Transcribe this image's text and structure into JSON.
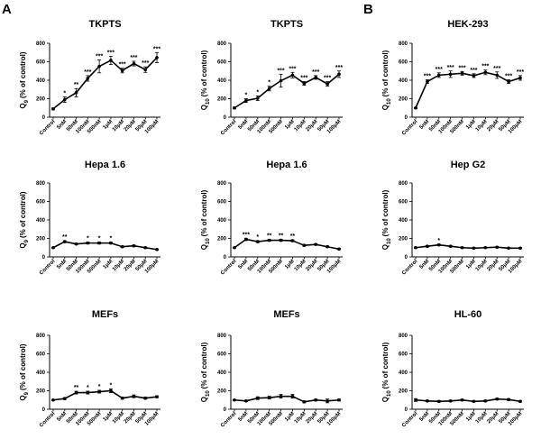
{
  "panel_labels": [
    "A",
    "B"
  ],
  "chart_data": [
    {
      "type": "line",
      "title": "TKPTS",
      "ylabel": "Q",
      "ylabel_sub": "9",
      "ylabel_rest": "(% of control)",
      "categories": [
        "Control",
        "5nM",
        "50nM",
        "100nM",
        "500nM",
        "1μM",
        "10μM",
        "20μM",
        "50μM",
        "100μM"
      ],
      "values": [
        90,
        190,
        265,
        420,
        550,
        615,
        505,
        580,
        515,
        645
      ],
      "errors": [
        10,
        30,
        45,
        30,
        70,
        45,
        25,
        25,
        30,
        55
      ],
      "significance": [
        "",
        "*",
        "**",
        "***",
        "***",
        "***",
        "***",
        "***",
        "***",
        "***"
      ],
      "ylim": [
        0,
        800
      ],
      "yticks": [
        0,
        200,
        400,
        600,
        800
      ]
    },
    {
      "type": "line",
      "title": "TKPTS",
      "ylabel": "Q",
      "ylabel_sub": "10",
      "ylabel_rest": "(% of control)",
      "categories": [
        "Control",
        "5nM",
        "50nM",
        "100nM",
        "500nM",
        "1μM",
        "10μM",
        "20μM",
        "50μM",
        "100μM"
      ],
      "values": [
        100,
        180,
        205,
        310,
        395,
        455,
        365,
        430,
        360,
        465
      ],
      "errors": [
        10,
        20,
        25,
        25,
        70,
        30,
        20,
        20,
        25,
        35
      ],
      "significance": [
        "",
        "*",
        "*",
        "*",
        "***",
        "***",
        "***",
        "***",
        "***",
        "***"
      ],
      "ylim": [
        0,
        800
      ],
      "yticks": [
        0,
        200,
        400,
        600,
        800
      ]
    },
    {
      "type": "line",
      "title": "HEK-293",
      "ylabel": "Q",
      "ylabel_sub": "10",
      "ylabel_rest": "(% of control)",
      "categories": [
        "Control",
        "5nM",
        "50nM",
        "100nM",
        "500nM",
        "1μM",
        "10μM",
        "20μM",
        "50μM",
        "100μM"
      ],
      "values": [
        100,
        385,
        455,
        465,
        475,
        450,
        485,
        455,
        385,
        425
      ],
      "errors": [
        5,
        20,
        25,
        35,
        20,
        20,
        25,
        35,
        20,
        25
      ],
      "significance": [
        "",
        "***",
        "***",
        "***",
        "***",
        "***",
        "***",
        "***",
        "***",
        "***"
      ],
      "ylim": [
        0,
        800
      ],
      "yticks": [
        0,
        200,
        400,
        600,
        800
      ]
    },
    {
      "type": "line",
      "title": "Hepa 1.6",
      "ylabel": "Q",
      "ylabel_sub": "9",
      "ylabel_rest": "(% of control)",
      "categories": [
        "Control",
        "5nM",
        "50nM",
        "100nM",
        "500nM",
        "1μM",
        "10μM",
        "20μM",
        "50μM",
        "100μM"
      ],
      "values": [
        100,
        165,
        140,
        150,
        150,
        150,
        110,
        120,
        100,
        80
      ],
      "errors": [
        5,
        10,
        8,
        10,
        10,
        10,
        8,
        8,
        8,
        6
      ],
      "significance": [
        "",
        "**",
        "",
        "*",
        "*",
        "*",
        "",
        "",
        "",
        ""
      ],
      "ylim": [
        0,
        800
      ],
      "yticks": [
        0,
        200,
        400,
        600,
        800
      ]
    },
    {
      "type": "line",
      "title": "Hepa 1.6",
      "ylabel": "Q",
      "ylabel_sub": "10",
      "ylabel_rest": "(% of control)",
      "categories": [
        "Control",
        "5nM",
        "50nM",
        "100nM",
        "500nM",
        "1μM",
        "10μM",
        "20μM",
        "50μM",
        "100μM"
      ],
      "values": [
        100,
        190,
        165,
        180,
        180,
        175,
        125,
        135,
        110,
        85
      ],
      "errors": [
        5,
        12,
        10,
        10,
        10,
        10,
        8,
        8,
        8,
        6
      ],
      "significance": [
        "",
        "***",
        "*",
        "**",
        "**",
        "**",
        "",
        "",
        "",
        ""
      ],
      "ylim": [
        0,
        800
      ],
      "yticks": [
        0,
        200,
        400,
        600,
        800
      ]
    },
    {
      "type": "line",
      "title": "Hep G2",
      "ylabel": "Q",
      "ylabel_sub": "10",
      "ylabel_rest": "(% of control)",
      "categories": [
        "Control",
        "5nM",
        "50nM",
        "100nM",
        "500nM",
        "1μM",
        "10μM",
        "20μM",
        "50μM",
        "100μM"
      ],
      "values": [
        100,
        115,
        130,
        115,
        100,
        95,
        100,
        105,
        95,
        95
      ],
      "errors": [
        5,
        8,
        8,
        8,
        6,
        6,
        6,
        6,
        6,
        6
      ],
      "significance": [
        "",
        "",
        "*",
        "",
        "",
        "",
        "",
        "",
        "",
        ""
      ],
      "ylim": [
        0,
        800
      ],
      "yticks": [
        0,
        200,
        400,
        600,
        800
      ]
    },
    {
      "type": "line",
      "title": "MEFs",
      "ylabel": "Q",
      "ylabel_sub": "9",
      "ylabel_rest": "(% of control)",
      "categories": [
        "Control",
        "5nM",
        "50nM",
        "100nM",
        "500nM",
        "1μM",
        "10μM",
        "20μM",
        "50μM",
        "100μM"
      ],
      "values": [
        100,
        115,
        180,
        180,
        190,
        200,
        120,
        140,
        120,
        135
      ],
      "errors": [
        5,
        10,
        15,
        15,
        15,
        20,
        10,
        15,
        10,
        10
      ],
      "significance": [
        "",
        "",
        "**",
        "*",
        "*",
        "*",
        "",
        "",
        "",
        ""
      ],
      "ylim": [
        0,
        800
      ],
      "yticks": [
        0,
        200,
        400,
        600,
        800
      ]
    },
    {
      "type": "line",
      "title": "MEFs",
      "ylabel": "Q",
      "ylabel_sub": "10",
      "ylabel_rest": "(% of control)",
      "categories": [
        "Control",
        "5nM",
        "50nM",
        "100nM",
        "500nM",
        "1μM",
        "10μM",
        "20μM",
        "50μM",
        "100μM"
      ],
      "values": [
        100,
        90,
        120,
        125,
        140,
        140,
        80,
        100,
        90,
        100
      ],
      "errors": [
        5,
        8,
        15,
        15,
        20,
        20,
        10,
        10,
        20,
        10
      ],
      "significance": [
        "",
        "",
        "",
        "",
        "",
        "",
        "",
        "",
        "",
        ""
      ],
      "ylim": [
        0,
        800
      ],
      "yticks": [
        0,
        200,
        400,
        600,
        800
      ]
    },
    {
      "type": "line",
      "title": "HL-60",
      "ylabel": "Q",
      "ylabel_sub": "10",
      "ylabel_rest": "(% of control)",
      "categories": [
        "Control",
        "5nM",
        "50nM",
        "100nM",
        "500nM",
        "1μM",
        "10μM",
        "20μM",
        "50μM",
        "100μM"
      ],
      "values": [
        100,
        90,
        85,
        90,
        100,
        85,
        90,
        110,
        105,
        85
      ],
      "errors": [
        15,
        8,
        8,
        8,
        8,
        8,
        8,
        8,
        10,
        8
      ],
      "significance": [
        "",
        "",
        "",
        "",
        "",
        "",
        "",
        "",
        "",
        ""
      ],
      "ylim": [
        0,
        800
      ],
      "yticks": [
        0,
        200,
        400,
        600,
        800
      ]
    }
  ]
}
